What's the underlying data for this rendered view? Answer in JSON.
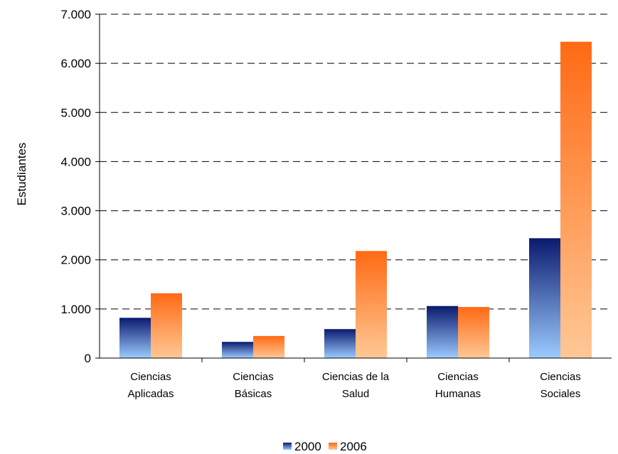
{
  "chart_data": {
    "type": "bar",
    "title": "",
    "xlabel": "",
    "ylabel": "Estudiantes",
    "ylim": [
      0,
      7000
    ],
    "yticks": [
      0,
      1000,
      2000,
      3000,
      4000,
      5000,
      6000,
      7000
    ],
    "ytick_labels": [
      "0",
      "1.000",
      "2.000",
      "3.000",
      "4.000",
      "5.000",
      "6.000",
      "7.000"
    ],
    "grid": true,
    "legend_position": "bottom",
    "categories": [
      [
        "Ciencias",
        "Aplicadas"
      ],
      [
        "Ciencias",
        "Básicas"
      ],
      [
        "Ciencias de la",
        "Salud"
      ],
      [
        "Ciencias",
        "Humanas"
      ],
      [
        "Ciencias",
        "Sociales"
      ]
    ],
    "series": [
      {
        "name": "2000",
        "values": [
          820,
          330,
          590,
          1060,
          2440
        ],
        "color_top": "#0a1a6e",
        "color_bottom": "#9ccbff"
      },
      {
        "name": "2006",
        "values": [
          1320,
          450,
          2180,
          1040,
          6440
        ],
        "color_top": "#ff6a14",
        "color_bottom": "#ffc896"
      }
    ]
  }
}
